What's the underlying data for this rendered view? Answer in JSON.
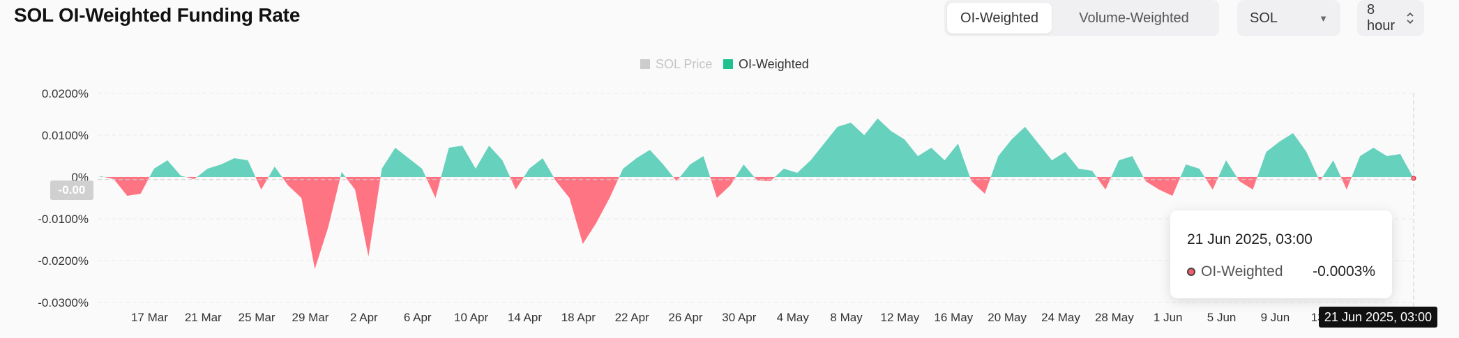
{
  "title": "SOL OI-Weighted Funding Rate",
  "toggle": {
    "options": [
      "OI-Weighted",
      "Volume-Weighted"
    ],
    "active": "OI-Weighted"
  },
  "asset_select": {
    "value": "SOL"
  },
  "interval_select": {
    "value": "8 hour"
  },
  "tooltip": {
    "date": "21 Jun 2025, 03:00",
    "series": "OI-Weighted",
    "value": "-0.0003%"
  },
  "crosshair": {
    "x_label": "21 Jun 2025, 03:00",
    "y_label": "-0.00"
  },
  "colors": {
    "positive": "#66d1bd",
    "negative": "#ff7482",
    "legend_oi": "#20c08f",
    "legend_price": "#cccccc"
  },
  "chart_data": {
    "type": "area",
    "title": "SOL OI-Weighted Funding Rate",
    "legend": [
      {
        "name": "SOL Price",
        "color": "#cccccc",
        "visible": false
      },
      {
        "name": "OI-Weighted",
        "color": "#20c08f",
        "visible": true
      }
    ],
    "legend_position": "top-center",
    "y_unit": "%",
    "y_ticks": [
      "0.0200%",
      "0.0100%",
      "0%",
      "-0.0100%",
      "-0.0200%",
      "-0.0300%"
    ],
    "y_tick_values": [
      0.02,
      0.01,
      0,
      -0.01,
      -0.02,
      -0.03
    ],
    "ylim": [
      -0.03,
      0.02
    ],
    "x_ticks": [
      "17 Mar",
      "21 Mar",
      "25 Mar",
      "29 Mar",
      "2 Apr",
      "6 Apr",
      "10 Apr",
      "14 Apr",
      "18 Apr",
      "22 Apr",
      "26 Apr",
      "30 Apr",
      "4 May",
      "8 May",
      "12 May",
      "16 May",
      "20 May",
      "24 May",
      "28 May",
      "1 Jun",
      "5 Jun",
      "9 Jun",
      "13 Jun"
    ],
    "x_start": "15 Mar 2025",
    "x_end": "21 Jun 2025",
    "grid": "horizontal dashed",
    "series": [
      {
        "name": "OI-Weighted",
        "x": [
          "15 Mar",
          "16 Mar",
          "17 Mar",
          "18 Mar",
          "19 Mar",
          "20 Mar",
          "21 Mar",
          "22 Mar",
          "23 Mar",
          "24 Mar",
          "25 Mar",
          "26 Mar",
          "27 Mar",
          "28 Mar",
          "29 Mar",
          "30 Mar",
          "31 Mar",
          "1 Apr",
          "2 Apr",
          "3 Apr",
          "4 Apr",
          "5 Apr",
          "6 Apr",
          "7 Apr",
          "8 Apr",
          "9 Apr",
          "10 Apr",
          "11 Apr",
          "12 Apr",
          "13 Apr",
          "14 Apr",
          "15 Apr",
          "16 Apr",
          "17 Apr",
          "18 Apr",
          "19 Apr",
          "20 Apr",
          "21 Apr",
          "22 Apr",
          "23 Apr",
          "24 Apr",
          "25 Apr",
          "26 Apr",
          "27 Apr",
          "28 Apr",
          "29 Apr",
          "30 Apr",
          "1 May",
          "2 May",
          "3 May",
          "4 May",
          "5 May",
          "6 May",
          "7 May",
          "8 May",
          "9 May",
          "10 May",
          "11 May",
          "12 May",
          "13 May",
          "14 May",
          "15 May",
          "16 May",
          "17 May",
          "18 May",
          "19 May",
          "20 May",
          "21 May",
          "22 May",
          "23 May",
          "24 May",
          "25 May",
          "26 May",
          "27 May",
          "28 May",
          "29 May",
          "30 May",
          "31 May",
          "1 Jun",
          "2 Jun",
          "3 Jun",
          "4 Jun",
          "5 Jun",
          "6 Jun",
          "7 Jun",
          "8 Jun",
          "9 Jun",
          "10 Jun",
          "11 Jun",
          "12 Jun",
          "13 Jun",
          "14 Jun",
          "15 Jun",
          "16 Jun",
          "17 Jun",
          "18 Jun",
          "19 Jun",
          "20 Jun",
          "21 Jun"
        ],
        "values": [
          0.0002,
          -0.0005,
          -0.0045,
          -0.004,
          0.002,
          0.004,
          0.0003,
          -0.0005,
          0.002,
          0.003,
          0.0045,
          0.004,
          -0.003,
          0.0025,
          -0.002,
          -0.005,
          -0.022,
          -0.012,
          0.0012,
          -0.003,
          -0.019,
          0.002,
          0.007,
          0.0045,
          0.002,
          -0.005,
          0.007,
          0.0075,
          0.002,
          0.0075,
          0.004,
          -0.003,
          0.002,
          0.0045,
          -0.001,
          -0.005,
          -0.016,
          -0.011,
          -0.005,
          0.002,
          0.0045,
          0.0065,
          0.003,
          -0.001,
          0.003,
          0.005,
          -0.005,
          -0.002,
          0.003,
          -0.0008,
          -0.001,
          0.002,
          0.001,
          0.004,
          0.008,
          0.012,
          0.013,
          0.01,
          0.014,
          0.011,
          0.009,
          0.005,
          0.007,
          0.004,
          0.008,
          -0.001,
          -0.004,
          0.005,
          0.009,
          0.012,
          0.008,
          0.004,
          0.006,
          0.002,
          0.0015,
          -0.003,
          0.004,
          0.005,
          -0.001,
          -0.003,
          -0.0045,
          0.003,
          0.002,
          -0.003,
          0.004,
          -0.001,
          -0.003,
          0.006,
          0.0085,
          0.0105,
          0.006,
          -0.001,
          0.004,
          -0.003,
          0.005,
          0.007,
          0.005,
          0.0055,
          -0.0003
        ]
      }
    ]
  }
}
